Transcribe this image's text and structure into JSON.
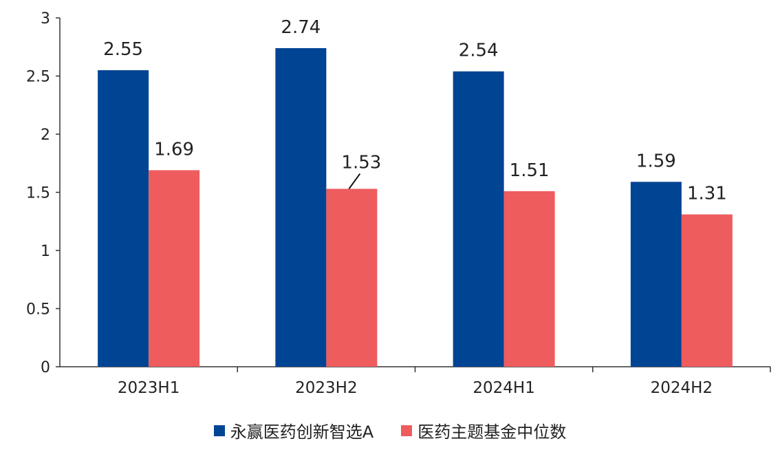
{
  "chart_data": {
    "type": "bar",
    "categories": [
      "2023H1",
      "2023H2",
      "2024H1",
      "2024H2"
    ],
    "series": [
      {
        "name": "永赢医药创新智选A",
        "values": [
          2.55,
          2.74,
          2.54,
          1.59
        ],
        "color": "#004494"
      },
      {
        "name": "医药主题基金中位数",
        "values": [
          1.69,
          1.53,
          1.51,
          1.31
        ],
        "color": "#EE5C5E"
      }
    ],
    "yticks": [
      "0",
      "0.5",
      "1",
      "1.5",
      "2",
      "2.5",
      "3"
    ],
    "ylim": [
      0,
      3
    ],
    "grid": false,
    "legend_position": "bottom"
  }
}
